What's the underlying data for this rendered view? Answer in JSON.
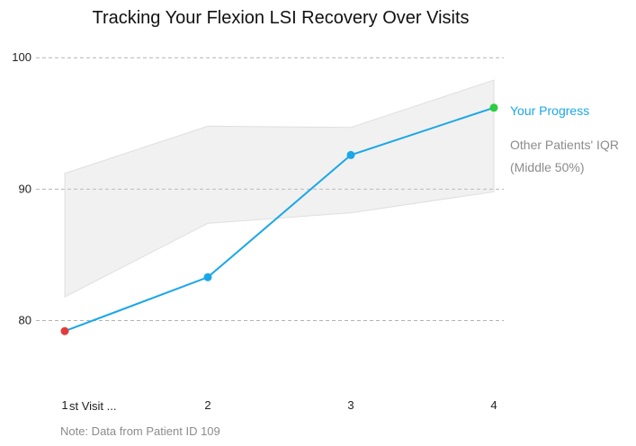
{
  "chart_data": {
    "type": "line",
    "title": "Tracking Your Flexion LSI Recovery Over Visits",
    "categories": [
      "1st Visit ...",
      "2",
      "3",
      "4"
    ],
    "x_tick_labels": [
      "1",
      "2",
      "3",
      "4"
    ],
    "x_first_label_suffix": "st Visit ...",
    "yticks": [
      80,
      90,
      100
    ],
    "ylim": [
      76,
      102
    ],
    "grid": "horizontal-dashed",
    "series": [
      {
        "name": "Your Progress",
        "values": [
          79.2,
          83.3,
          92.6,
          96.2
        ],
        "color": "#1aa7e8",
        "point_colors": [
          "#e03c3c",
          "#1aa7e8",
          "#1aa7e8",
          "#2ecc40"
        ]
      }
    ],
    "band": {
      "label_line1": "Other Patients' IQR",
      "label_line2": "(Middle 50%)",
      "upper": [
        91.2,
        94.8,
        94.7,
        98.3
      ],
      "lower": [
        81.8,
        87.4,
        88.2,
        89.8
      ],
      "color": "#cfcfcf"
    },
    "note": "Note: Data from Patient ID 109"
  }
}
